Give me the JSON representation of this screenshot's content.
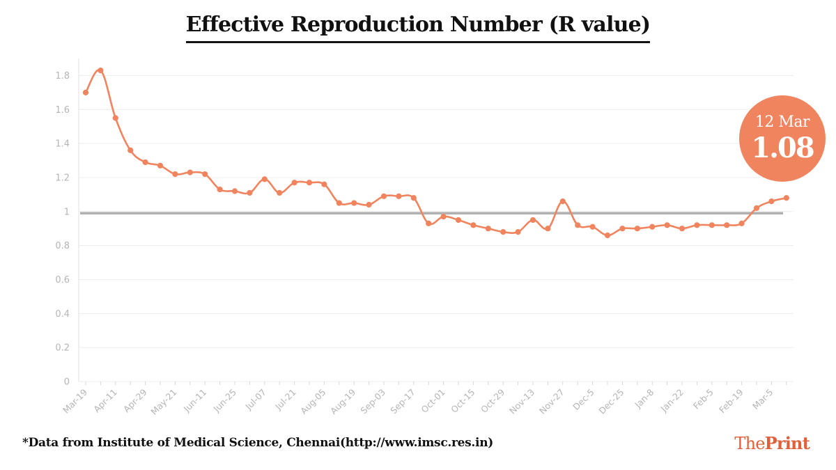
{
  "chart_data": {
    "type": "line",
    "title": "Effective Reproduction Number (R value)",
    "xlabel": "",
    "ylabel": "",
    "ylim": [
      0,
      1.9
    ],
    "yticks": [
      "0",
      "0.2",
      "0.4",
      "0.6",
      "0.8",
      "1",
      "1.2",
      "1.4",
      "1.6",
      "1.8"
    ],
    "xtick_labels": [
      "Mar-19",
      "Apr-11",
      "Apr-29",
      "May-21",
      "Jun-11",
      "Jun-25",
      "Jul-07",
      "Jul-21",
      "Aug-05",
      "Aug-19",
      "Sep-03",
      "Sep-17",
      "Oct-01",
      "Oct-15",
      "Oct-29",
      "Nov-13",
      "Nov-27",
      "Dec-5",
      "Dec-25",
      "Jan-8",
      "Jan-22",
      "Feb-5",
      "Feb-19",
      "Mar-5"
    ],
    "reference_line": 0.99,
    "grid": true,
    "series": [
      {
        "values": [
          1.7,
          1.83,
          1.55,
          1.36,
          1.29,
          1.27,
          1.22,
          1.23,
          1.22,
          1.13,
          1.12,
          1.11,
          1.19,
          1.11,
          1.17,
          1.17,
          1.16,
          1.05,
          1.05,
          1.04,
          1.09,
          1.09,
          1.08,
          0.93,
          0.97,
          0.95,
          0.92,
          0.9,
          0.88,
          0.88,
          0.95,
          0.9,
          1.06,
          0.92,
          0.91,
          0.86,
          0.9,
          0.9,
          0.91,
          0.92,
          0.9,
          0.92,
          0.92,
          0.92,
          0.93,
          1.02,
          1.06,
          1.08
        ]
      }
    ]
  },
  "callout": {
    "date": "12 Mar",
    "value": "1.08"
  },
  "footnote": "*Data from Institute of Medical Science, Chennai(http://www.imsc.res.in)",
  "brand": {
    "part1": "The",
    "part2": "Print"
  },
  "colors": {
    "line": "#f0845e",
    "reference": "#b0b0b0",
    "grid": "#ececec",
    "brand": "#e0603c"
  }
}
